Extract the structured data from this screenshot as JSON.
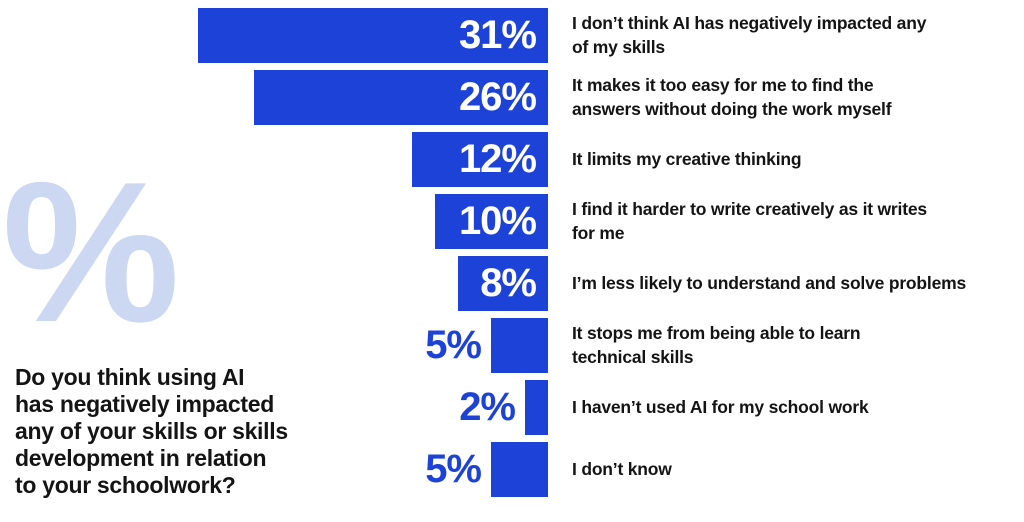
{
  "watermark": {
    "symbol": "%"
  },
  "question": {
    "text": "Do you think using AI\nhas negatively impacted\nany of your skills or skills\ndevelopment in relation\nto your schoolwork?"
  },
  "colors": {
    "bar_blue": "#1d42d8",
    "watermark_blue": "#ccd7f2",
    "text_black": "#141414",
    "value_white": "#ffffff",
    "background": "#ffffff"
  },
  "chart_data": {
    "type": "bar",
    "orientation": "horizontal",
    "bar_alignment": "right",
    "unit": "%",
    "title": "Do you think using AI has negatively impacted any of your skills or skills development in relation to your schoolwork?",
    "grid": false,
    "legend": false,
    "xlim": [
      0,
      31
    ],
    "categories": [
      "I don’t think AI has negatively impacted any of my skills",
      "It makes it too easy for me to find the answers without doing the work myself",
      "It limits my creative thinking",
      "I find it harder to write creatively as it writes for me",
      "I’m less likely to understand and solve problems",
      "It stops me from being able to learn technical skills",
      "I haven’t used AI for my school work",
      "I don’t know"
    ],
    "values": [
      31,
      26,
      12,
      10,
      8,
      5,
      2,
      5
    ],
    "rows": [
      {
        "value": 31,
        "value_label": "31%",
        "label": "I don’t think AI has negatively impacted any\nof my skills"
      },
      {
        "value": 26,
        "value_label": "26%",
        "label": "It makes it too easy for me to find the\nanswers without doing the work myself"
      },
      {
        "value": 12,
        "value_label": "12%",
        "label": "It limits my creative thinking"
      },
      {
        "value": 10,
        "value_label": "10%",
        "label": "I find it harder to write creatively as it writes\nfor me"
      },
      {
        "value": 8,
        "value_label": "8%",
        "label": "I’m less likely to understand and solve problems"
      },
      {
        "value": 5,
        "value_label": "5%",
        "label": "It stops me from being able to learn\ntechnical skills"
      },
      {
        "value": 2,
        "value_label": "2%",
        "label": "I haven’t used AI for my school work"
      },
      {
        "value": 5,
        "value_label": "5%",
        "label": "I don’t know"
      }
    ]
  }
}
